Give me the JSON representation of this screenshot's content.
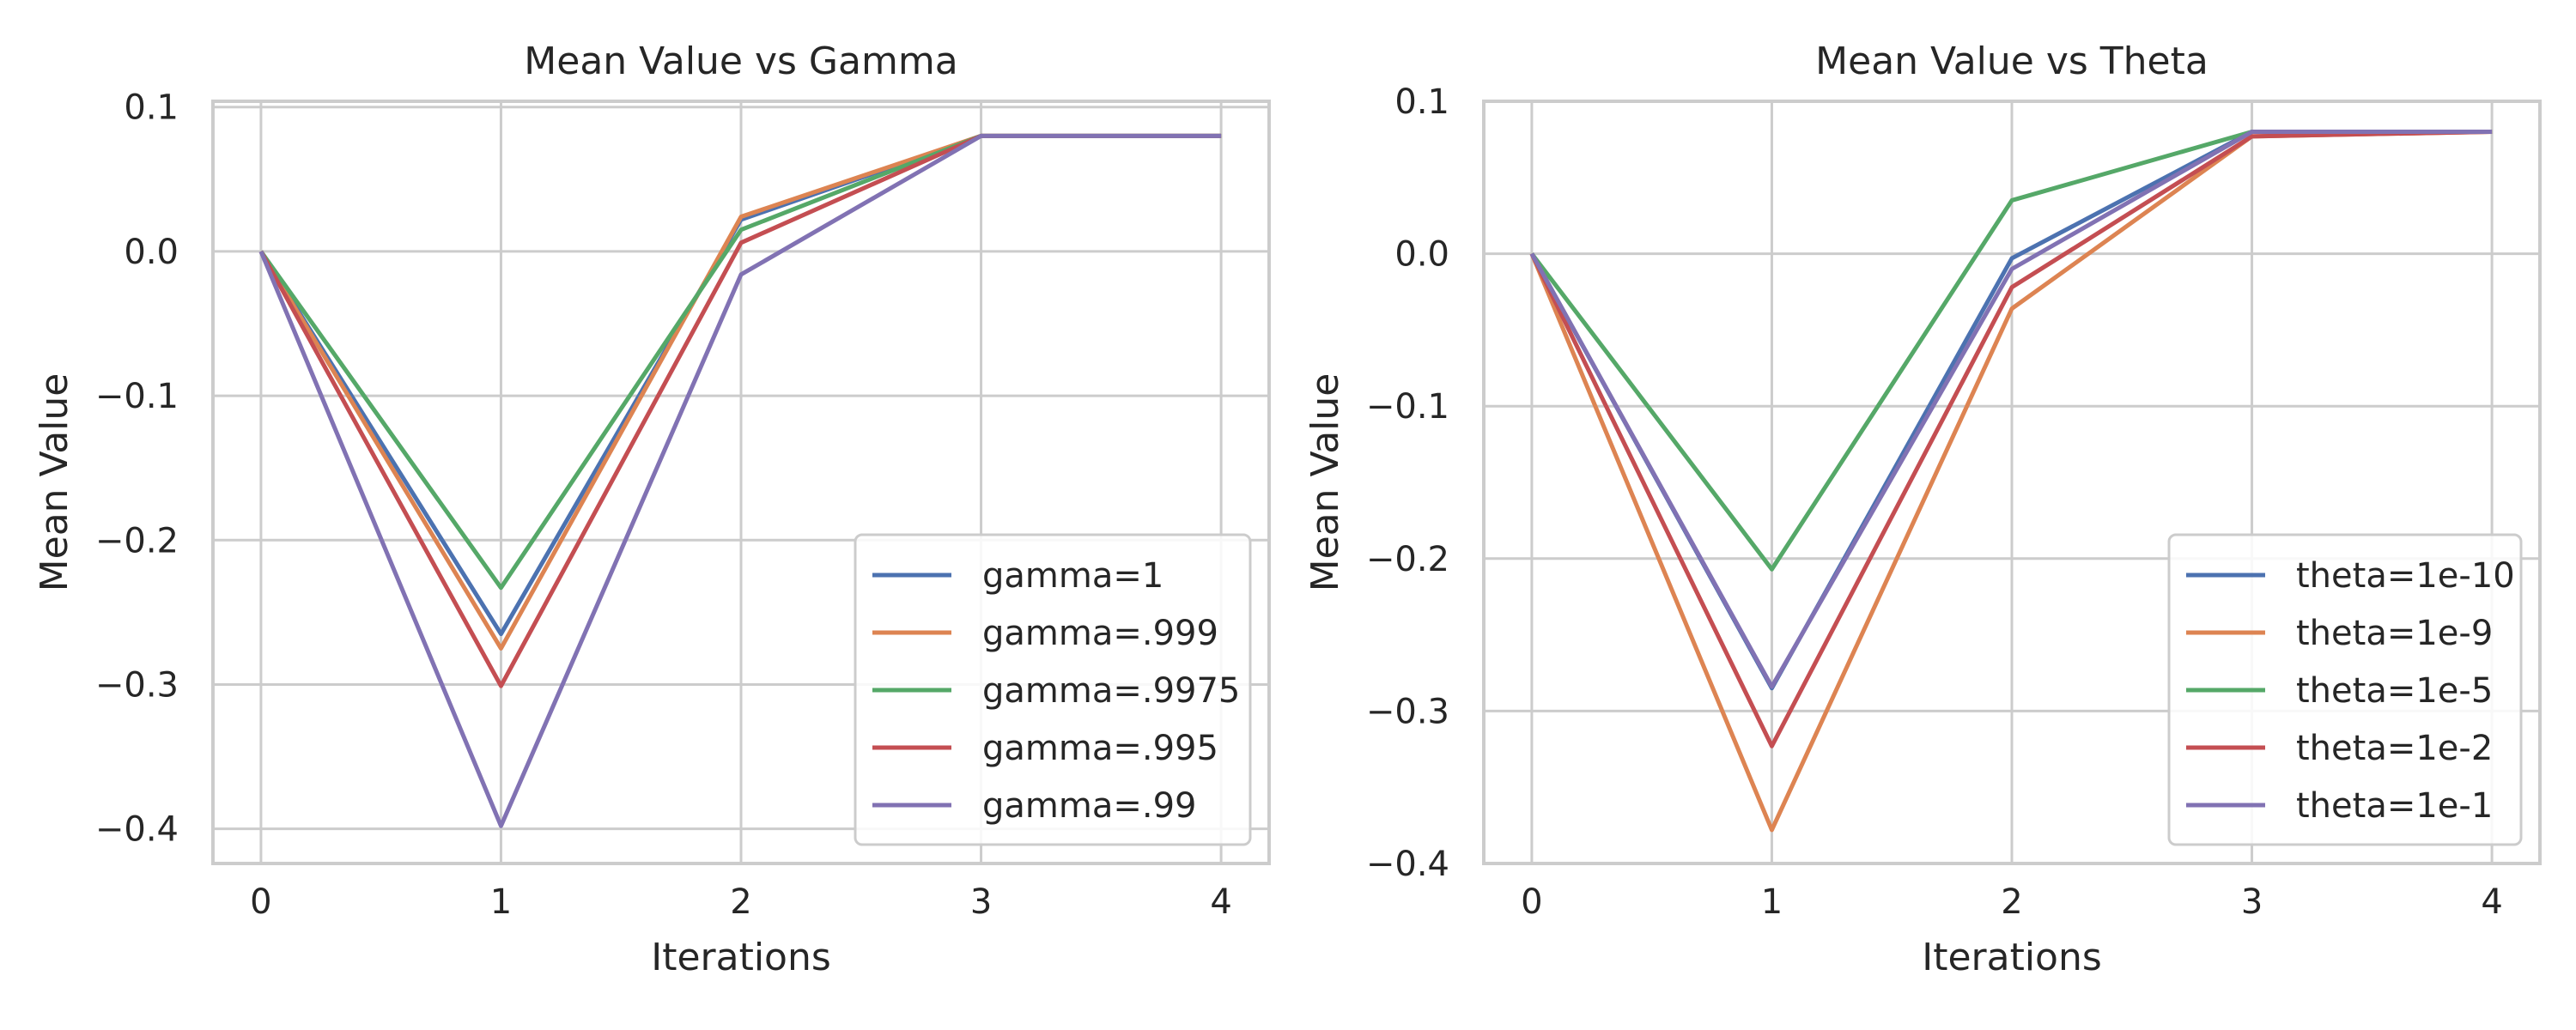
{
  "chart_data": [
    {
      "type": "line",
      "title": "Mean Value vs Gamma",
      "xlabel": "Iterations",
      "ylabel": "Mean Value",
      "x": [
        0,
        1,
        2,
        3,
        4
      ],
      "xticks": [
        "0",
        "1",
        "2",
        "3",
        "4"
      ],
      "yticks": [
        "0.1",
        "0.0",
        "−0.1",
        "−0.2",
        "−0.3",
        "−0.4"
      ],
      "ytick_values": [
        0.1,
        0.0,
        -0.1,
        -0.2,
        -0.3,
        -0.4
      ],
      "xlim": [
        -0.2,
        4.2
      ],
      "ylim": [
        -0.424,
        0.104
      ],
      "grid": true,
      "legend_position": "lower-right",
      "series": [
        {
          "name": "gamma=1",
          "color": "#4c72b0",
          "values": [
            0.0,
            -0.265,
            0.022,
            0.08,
            0.08
          ]
        },
        {
          "name": "gamma=.999",
          "color": "#dd8452",
          "values": [
            0.0,
            -0.275,
            0.024,
            0.08,
            0.08
          ]
        },
        {
          "name": "gamma=.9975",
          "color": "#55a868",
          "values": [
            0.0,
            -0.233,
            0.015,
            0.08,
            0.08
          ]
        },
        {
          "name": "gamma=.995",
          "color": "#c44e52",
          "values": [
            0.0,
            -0.301,
            0.006,
            0.08,
            0.08
          ]
        },
        {
          "name": "gamma=.99",
          "color": "#8172b3",
          "values": [
            0.0,
            -0.398,
            -0.016,
            0.08,
            0.08
          ]
        }
      ]
    },
    {
      "type": "line",
      "title": "Mean Value vs Theta",
      "xlabel": "Iterations",
      "ylabel": "Mean Value",
      "x": [
        0,
        1,
        2,
        3,
        4
      ],
      "xticks": [
        "0",
        "1",
        "2",
        "3",
        "4"
      ],
      "yticks": [
        "0.1",
        "0.0",
        "−0.1",
        "−0.2",
        "−0.3",
        "−0.4"
      ],
      "ytick_values": [
        0.1,
        0.0,
        -0.1,
        -0.2,
        -0.3,
        -0.4
      ],
      "xlim": [
        -0.2,
        4.2
      ],
      "ylim": [
        -0.4,
        0.1
      ],
      "grid": true,
      "legend_position": "lower-right",
      "series": [
        {
          "name": "theta=1e-10",
          "color": "#4c72b0",
          "values": [
            0.0,
            -0.285,
            -0.003,
            0.08,
            0.08
          ]
        },
        {
          "name": "theta=1e-9",
          "color": "#dd8452",
          "values": [
            0.0,
            -0.378,
            -0.036,
            0.077,
            0.08
          ]
        },
        {
          "name": "theta=1e-5",
          "color": "#55a868",
          "values": [
            0.0,
            -0.207,
            0.035,
            0.08,
            0.08
          ]
        },
        {
          "name": "theta=1e-2",
          "color": "#c44e52",
          "values": [
            0.0,
            -0.323,
            -0.022,
            0.077,
            0.08
          ]
        },
        {
          "name": "theta=1e-1",
          "color": "#8172b3",
          "values": [
            0.0,
            -0.284,
            -0.01,
            0.08,
            0.08
          ]
        }
      ]
    }
  ]
}
